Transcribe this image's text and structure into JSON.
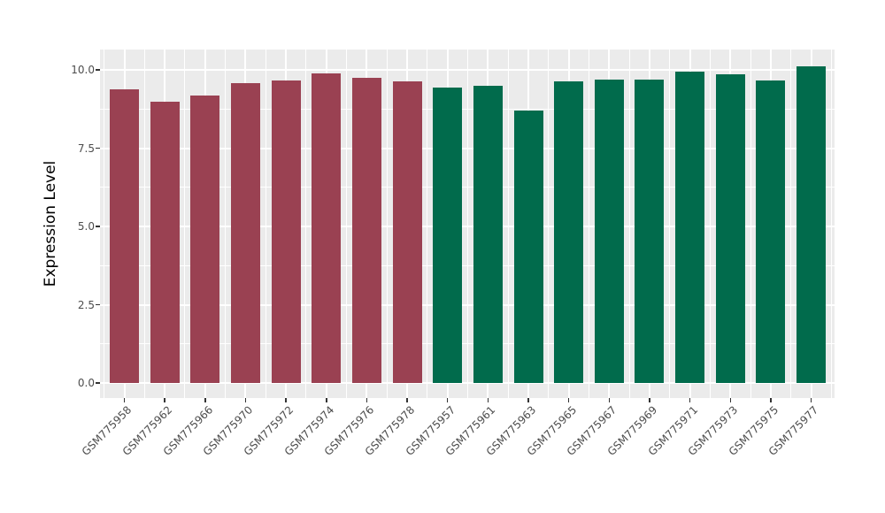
{
  "chart_data": {
    "type": "bar",
    "title": "",
    "xlabel": "",
    "ylabel": "Expression Level",
    "ylim": [
      -0.5,
      10.65
    ],
    "grid": true,
    "legend": "none",
    "panel_bg": "#EBEBEB",
    "gridline_color": "#FFFFFF",
    "y_major_ticks": [
      0,
      2.5,
      5,
      7.5,
      10
    ],
    "y_tick_labels": [
      "0.0",
      "2.5",
      "5.0",
      "7.5",
      "10.0"
    ],
    "y_minor_gridlines": [
      1.25,
      3.75,
      6.25,
      8.75
    ],
    "categories": [
      "GSM775958",
      "GSM775962",
      "GSM775966",
      "GSM775970",
      "GSM775972",
      "GSM775974",
      "GSM775976",
      "GSM775978",
      "GSM775957",
      "GSM775961",
      "GSM775963",
      "GSM775965",
      "GSM775967",
      "GSM775969",
      "GSM775971",
      "GSM775973",
      "GSM775975",
      "GSM775977"
    ],
    "values": [
      9.38,
      8.98,
      9.18,
      9.59,
      9.67,
      9.9,
      9.75,
      9.64,
      9.43,
      9.5,
      8.69,
      9.63,
      9.7,
      9.69,
      9.95,
      9.86,
      9.67,
      10.12
    ],
    "groups": [
      "group1",
      "group1",
      "group1",
      "group1",
      "group1",
      "group1",
      "group1",
      "group1",
      "group2",
      "group2",
      "group2",
      "group2",
      "group2",
      "group2",
      "group2",
      "group2",
      "group2",
      "group2"
    ],
    "group_colors": {
      "group1": "#9A4152",
      "group2": "#016B4C"
    }
  }
}
